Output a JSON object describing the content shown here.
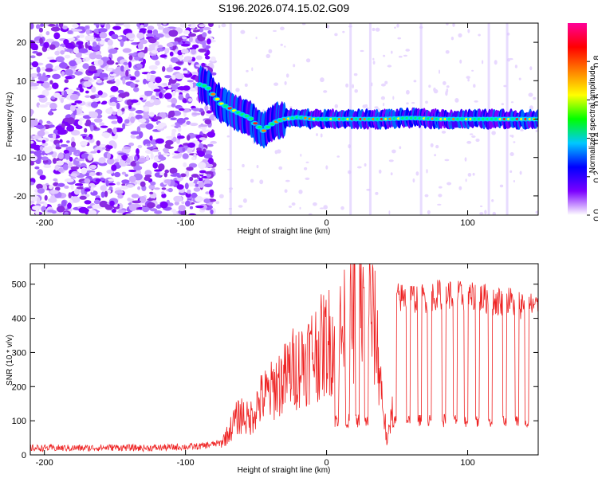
{
  "title": "S196.2026.074.15.02.G09",
  "chart_data": [
    {
      "type": "heatmap",
      "name": "spectrogram",
      "xlabel": "Height of straight line (km)",
      "ylabel": "Frequency (Hz)",
      "xlim": [
        -210,
        150
      ],
      "ylim": [
        -25,
        25
      ],
      "xticks": [
        -200,
        -100,
        0,
        100
      ],
      "yticks": [
        -20,
        -10,
        0,
        10,
        20
      ],
      "colorbar": {
        "label": "Normalized spectral amplitude",
        "range": [
          0,
          1
        ],
        "ticks": [
          "0.0",
          "0.2",
          "0.4",
          "0.6",
          "0.8"
        ],
        "tick_values": [
          0.0,
          0.2,
          0.4,
          0.6,
          0.8
        ],
        "colors": [
          "#ffffff",
          "#7b00ff",
          "#0000ff",
          "#00c8ff",
          "#00ff00",
          "#ffff00",
          "#ff8000",
          "#ff0000",
          "#ff0099"
        ]
      },
      "ridge": {
        "x": [
          -90,
          -85,
          -80,
          -75,
          -70,
          -65,
          -60,
          -55,
          -50,
          -45,
          -40,
          -35,
          -30,
          -20,
          -10,
          0,
          20,
          40,
          60,
          80,
          100,
          120,
          150
        ],
        "y": [
          9,
          8.5,
          6,
          4,
          3,
          2,
          1.2,
          0.5,
          -1.5,
          -3,
          -1.5,
          -0.5,
          0,
          0.5,
          0,
          0,
          0,
          0,
          0.3,
          0,
          0,
          0,
          0
        ]
      },
      "noise_region_x": [
        -210,
        -80
      ],
      "vertical_streaks_x": [
        -68,
        17,
        31,
        67,
        115,
        128
      ]
    },
    {
      "type": "line",
      "name": "snr",
      "xlabel": "Height of straight line (km)",
      "ylabel": "SNR (10 * v/v)",
      "xlim": [
        -210,
        150
      ],
      "ylim": [
        0,
        560
      ],
      "xticks": [
        -200,
        -100,
        0,
        100
      ],
      "yticks": [
        0,
        100,
        200,
        300,
        400,
        500
      ],
      "color": "#ee2222",
      "series": [
        {
          "name": "SNR",
          "x": [
            -210,
            -190,
            -170,
            -150,
            -130,
            -110,
            -90,
            -75,
            -70,
            -65,
            -60,
            -55,
            -50,
            -45,
            -40,
            -35,
            -30,
            -25,
            -20,
            -15,
            -10,
            -5,
            0,
            5,
            10,
            15,
            20,
            25,
            30,
            35,
            40,
            43,
            46,
            50,
            60,
            70,
            80,
            90,
            100,
            110,
            120,
            130,
            140,
            150
          ],
          "y": [
            20,
            20,
            20,
            22,
            20,
            22,
            25,
            35,
            60,
            100,
            120,
            100,
            140,
            170,
            180,
            210,
            220,
            250,
            260,
            280,
            300,
            310,
            330,
            340,
            350,
            380,
            410,
            430,
            440,
            350,
            150,
            30,
            120,
            460,
            460,
            460,
            470,
            470,
            460,
            460,
            450,
            450,
            440,
            430
          ]
        }
      ],
      "dropouts_x": [
        7,
        15,
        22,
        28,
        48,
        58,
        66,
        73,
        83,
        91,
        99,
        107,
        116,
        126,
        135,
        142
      ]
    }
  ]
}
